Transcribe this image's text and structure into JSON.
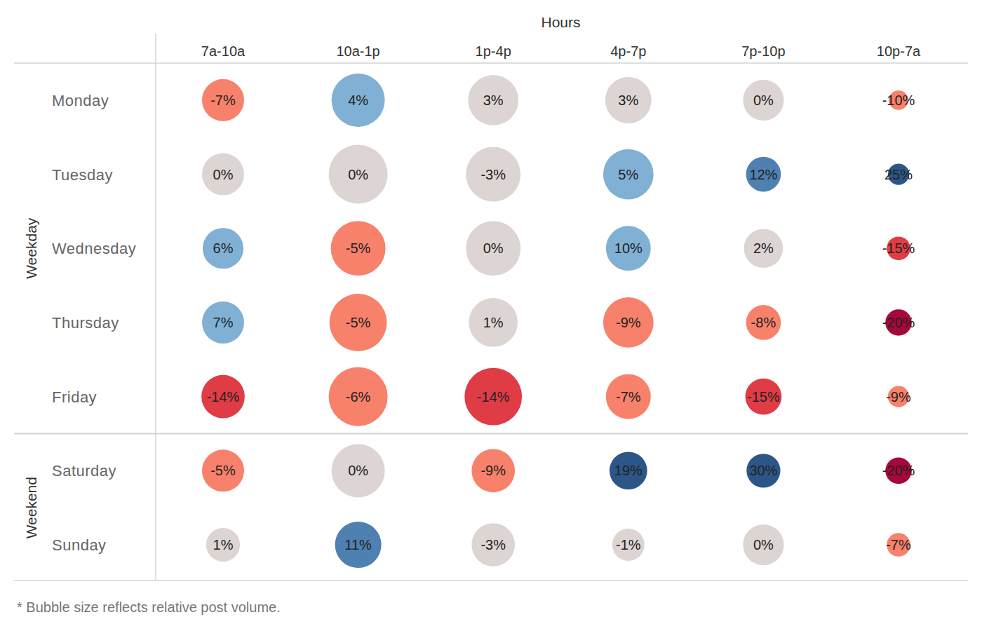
{
  "chart_data": {
    "type": "bubble",
    "x_label": "Hours",
    "categories": [
      "7a-10a",
      "10a-1p",
      "1p-4p",
      "4p-7p",
      "7p-10p",
      "10p-7a"
    ],
    "row_groups": [
      {
        "name": "Weekday",
        "rows": [
          "Monday",
          "Tuesday",
          "Wednesday",
          "Thursday",
          "Friday"
        ]
      },
      {
        "name": "Weekend",
        "rows": [
          "Saturday",
          "Sunday"
        ]
      }
    ],
    "values": [
      [
        -7,
        4,
        3,
        3,
        0,
        -10
      ],
      [
        0,
        0,
        -3,
        5,
        12,
        25
      ],
      [
        6,
        -5,
        0,
        10,
        2,
        -15
      ],
      [
        7,
        -5,
        1,
        -9,
        -8,
        -20
      ],
      [
        -14,
        -6,
        -14,
        -7,
        -15,
        -9
      ],
      [
        -5,
        0,
        -9,
        19,
        30,
        -20
      ],
      [
        1,
        11,
        -3,
        -1,
        0,
        -7
      ]
    ],
    "value_labels": [
      [
        "-7%",
        "4%",
        "3%",
        "3%",
        "0%",
        "-10%"
      ],
      [
        "0%",
        "0%",
        "-3%",
        "5%",
        "12%",
        "25%"
      ],
      [
        "6%",
        "-5%",
        "0%",
        "10%",
        "2%",
        "-15%"
      ],
      [
        "7%",
        "-5%",
        "1%",
        "-9%",
        "-8%",
        "-20%"
      ],
      [
        "-14%",
        "-6%",
        "-14%",
        "-7%",
        "-15%",
        "-9%"
      ],
      [
        "-5%",
        "0%",
        "-9%",
        "19%",
        "30%",
        "-20%"
      ],
      [
        "1%",
        "11%",
        "-3%",
        "-1%",
        "0%",
        "-7%"
      ]
    ],
    "sizes": [
      [
        51,
        82,
        73,
        62,
        48,
        11
      ],
      [
        51,
        100,
        86,
        73,
        35,
        13
      ],
      [
        48,
        86,
        86,
        58,
        44,
        16
      ],
      [
        51,
        95,
        69,
        73,
        35,
        20
      ],
      [
        54,
        100,
        95,
        58,
        38,
        13
      ],
      [
        51,
        82,
        54,
        41,
        33,
        20
      ],
      [
        33,
        62,
        54,
        30,
        48,
        16
      ]
    ],
    "colors": [
      [
        "#f7816a",
        "#80b1d4",
        "#ddd5d3",
        "#ddd5d3",
        "#ddd5d3",
        "#f7816a"
      ],
      [
        "#ddd5d3",
        "#ddd5d3",
        "#ddd5d3",
        "#80b1d4",
        "#4e80b2",
        "#2c5688"
      ],
      [
        "#80b1d4",
        "#f7816a",
        "#ddd5d3",
        "#80b1d4",
        "#ddd5d3",
        "#e03c45"
      ],
      [
        "#80b1d4",
        "#f7816a",
        "#ddd5d3",
        "#f7816a",
        "#f7816a",
        "#a6083a"
      ],
      [
        "#e03c45",
        "#f7816a",
        "#e03c45",
        "#f7816a",
        "#e03c45",
        "#f7816a"
      ],
      [
        "#f7816a",
        "#ddd5d3",
        "#f7816a",
        "#2c5688",
        "#2c5688",
        "#a6083a"
      ],
      [
        "#ddd5d3",
        "#4e80b2",
        "#ddd5d3",
        "#ddd5d3",
        "#ddd5d3",
        "#f7816a"
      ]
    ],
    "data_labels": true,
    "note": "* Bubble size reflects relative post volume."
  }
}
